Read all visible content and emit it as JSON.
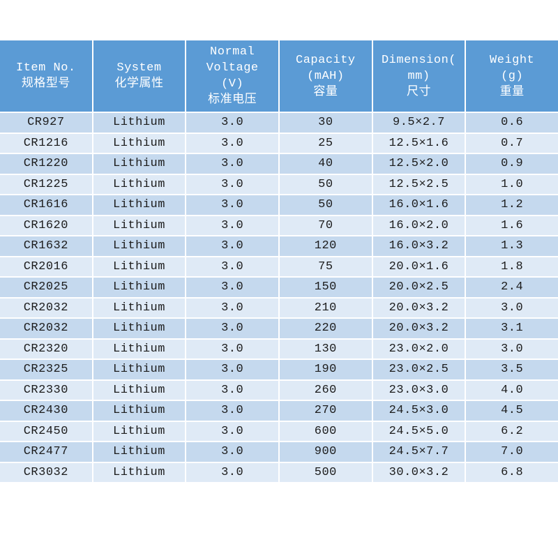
{
  "chart_data": {
    "type": "table",
    "title": "Coin cell battery specifications (bilingual English/Chinese)",
    "columns": [
      {
        "id": "item-no",
        "label": "Item No. 规格型号",
        "lines": [
          "Item No.",
          "规格型号"
        ]
      },
      {
        "id": "system",
        "label": "System 化学属性",
        "lines": [
          "System",
          "化学属性"
        ]
      },
      {
        "id": "voltage",
        "label": "Normal Voltage (V) 标准电压",
        "lines": [
          "Normal",
          "Voltage",
          "(V)",
          "标准电压"
        ]
      },
      {
        "id": "capacity",
        "label": "Capacity (mAH) 容量",
        "lines": [
          "Capacity",
          "(mAH)",
          "容量"
        ]
      },
      {
        "id": "dimension",
        "label": "Dimension(mm) 尺寸",
        "lines": [
          "Dimension(",
          "mm)",
          "尺寸"
        ]
      },
      {
        "id": "weight",
        "label": "Weight (g) 重量",
        "lines": [
          "Weight",
          "(g)",
          "重量"
        ]
      }
    ],
    "rows": [
      [
        "CR927",
        "Lithium",
        "3.0",
        "30",
        "9.5×2.7",
        "0.6"
      ],
      [
        "CR1216",
        "Lithium",
        "3.0",
        "25",
        "12.5×1.6",
        "0.7"
      ],
      [
        "CR1220",
        "Lithium",
        "3.0",
        "40",
        "12.5×2.0",
        "0.9"
      ],
      [
        "CR1225",
        "Lithium",
        "3.0",
        "50",
        "12.5×2.5",
        "1.0"
      ],
      [
        "CR1616",
        "Lithium",
        "3.0",
        "50",
        "16.0×1.6",
        "1.2"
      ],
      [
        "CR1620",
        "Lithium",
        "3.0",
        "70",
        "16.0×2.0",
        "1.6"
      ],
      [
        "CR1632",
        "Lithium",
        "3.0",
        "120",
        "16.0×3.2",
        "1.3"
      ],
      [
        "CR2016",
        "Lithium",
        "3.0",
        "75",
        "20.0×1.6",
        "1.8"
      ],
      [
        "CR2025",
        "Lithium",
        "3.0",
        "150",
        "20.0×2.5",
        "2.4"
      ],
      [
        "CR2032",
        "Lithium",
        "3.0",
        "210",
        "20.0×3.2",
        "3.0"
      ],
      [
        "CR2032",
        "Lithium",
        "3.0",
        "220",
        "20.0×3.2",
        "3.1"
      ],
      [
        "CR2320",
        "Lithium",
        "3.0",
        "130",
        "23.0×2.0",
        "3.0"
      ],
      [
        "CR2325",
        "Lithium",
        "3.0",
        "190",
        "23.0×2.5",
        "3.5"
      ],
      [
        "CR2330",
        "Lithium",
        "3.0",
        "260",
        "23.0×3.0",
        "4.0"
      ],
      [
        "CR2430",
        "Lithium",
        "3.0",
        "270",
        "24.5×3.0",
        "4.5"
      ],
      [
        "CR2450",
        "Lithium",
        "3.0",
        "600",
        "24.5×5.0",
        "6.2"
      ],
      [
        "CR2477",
        "Lithium",
        "3.0",
        "900",
        "24.5×7.7",
        "7.0"
      ],
      [
        "CR3032",
        "Lithium",
        "3.0",
        "500",
        "30.0×3.2",
        "6.8"
      ]
    ],
    "layout": {
      "gridlines": "white",
      "row_striping": "odd rows darker blue, even rows lighter blue"
    }
  },
  "colors": {
    "header_bg": "#5b9bd5",
    "header_text": "#ffffff",
    "row_odd_bg": "#c5d9ee",
    "row_even_bg": "#dfeaf6",
    "body_text": "#1c1c1c",
    "gridline": "#ffffff",
    "page_bg": "#ffffff"
  }
}
